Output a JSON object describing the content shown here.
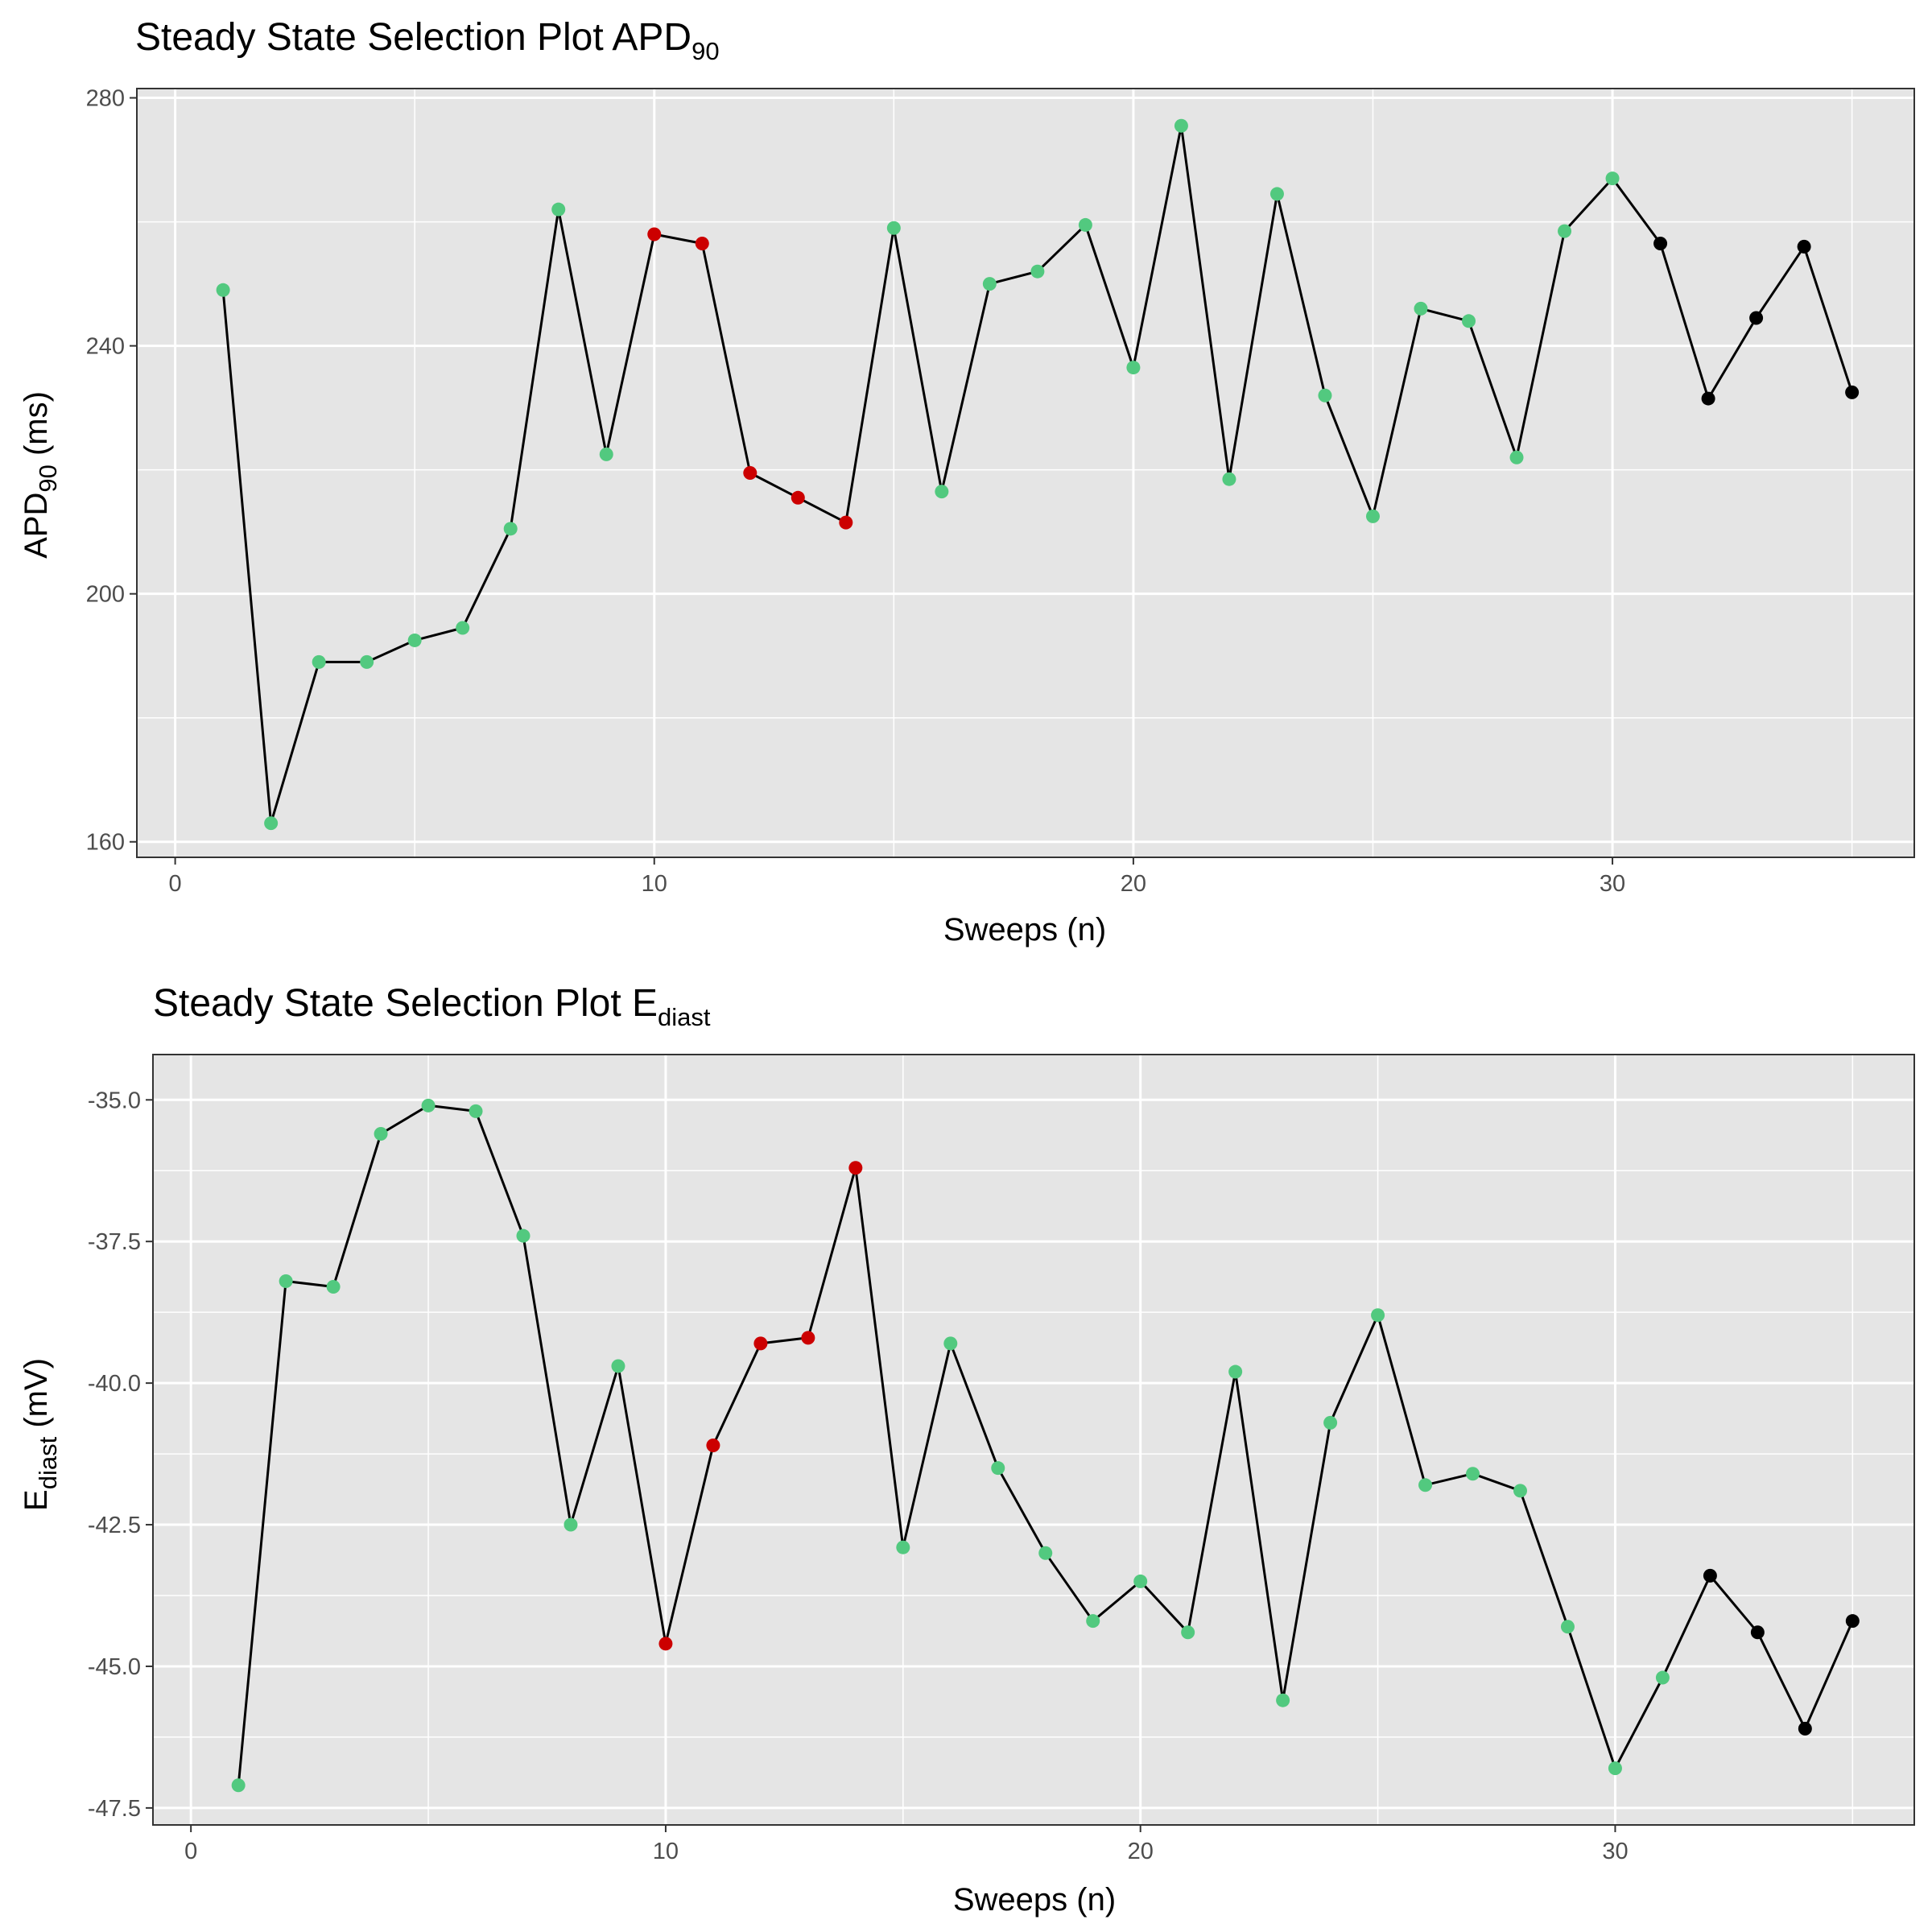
{
  "colors": {
    "panel": "#e5e5e5",
    "grid": "#ffffff",
    "line": "#000000",
    "included": "#52c97f",
    "excluded": "#cc0000",
    "final": "#000000"
  },
  "chart_data": [
    {
      "type": "line",
      "title": "Steady State Selection Plot APD",
      "title_sub": "90",
      "xlabel": "Sweeps (n)",
      "ylabel": "APD",
      "ylabel_sub": "90",
      "ylabel_suffix": " (ms)",
      "xlim": [
        -0.8,
        36.3
      ],
      "ylim": [
        157.5,
        281.5
      ],
      "x_ticks": [
        0,
        10,
        20,
        30
      ],
      "x_tick_labels": [
        "0",
        "10",
        "20",
        "30"
      ],
      "y_ticks": [
        160,
        200,
        240,
        280
      ],
      "y_tick_labels": [
        "160",
        "200",
        "240",
        "280"
      ],
      "grid": true,
      "x": [
        1,
        2,
        3,
        4,
        5,
        6,
        7,
        8,
        9,
        10,
        11,
        12,
        13,
        14,
        15,
        16,
        17,
        18,
        19,
        20,
        21,
        22,
        23,
        24,
        25,
        26,
        27,
        28,
        29,
        30,
        31,
        32,
        33,
        34,
        35
      ],
      "y": [
        249,
        163,
        189,
        189,
        192.5,
        194.5,
        210.5,
        262,
        222.5,
        258,
        256.5,
        219.5,
        215.5,
        211.5,
        259,
        216.5,
        250,
        252,
        259.5,
        236.5,
        275.5,
        218.5,
        264.5,
        232,
        212.5,
        246,
        244,
        222,
        258.5,
        267,
        256.5,
        231.5,
        244.5,
        256,
        232.5
      ],
      "point_status": [
        "included",
        "included",
        "included",
        "included",
        "included",
        "included",
        "included",
        "included",
        "included",
        "excluded",
        "excluded",
        "excluded",
        "excluded",
        "excluded",
        "included",
        "included",
        "included",
        "included",
        "included",
        "included",
        "included",
        "included",
        "included",
        "included",
        "included",
        "included",
        "included",
        "included",
        "included",
        "included",
        "final",
        "final",
        "final",
        "final",
        "final"
      ]
    },
    {
      "type": "line",
      "title": "Steady State Selection Plot E",
      "title_sub": "diast",
      "xlabel": "Sweeps (n)",
      "ylabel": "E",
      "ylabel_sub": "diast",
      "ylabel_suffix": " (mV)",
      "xlim": [
        -0.8,
        36.3
      ],
      "ylim": [
        -47.8,
        -34.2
      ],
      "x_ticks": [
        0,
        10,
        20,
        30
      ],
      "x_tick_labels": [
        "0",
        "10",
        "20",
        "30"
      ],
      "y_ticks": [
        -47.5,
        -45.0,
        -42.5,
        -40.0,
        -37.5,
        -35.0
      ],
      "y_tick_labels": [
        "-47.5",
        "-45.0",
        "-42.5",
        "-40.0",
        "-37.5",
        "-35.0"
      ],
      "grid": true,
      "x": [
        1,
        2,
        3,
        4,
        5,
        6,
        7,
        8,
        9,
        10,
        11,
        12,
        13,
        14,
        15,
        16,
        17,
        18,
        19,
        20,
        21,
        22,
        23,
        24,
        25,
        26,
        27,
        28,
        29,
        30,
        31,
        32,
        33,
        34,
        35
      ],
      "y": [
        -47.1,
        -38.2,
        -38.3,
        -35.6,
        -35.1,
        -35.2,
        -37.4,
        -42.5,
        -39.7,
        -44.6,
        -41.1,
        -39.3,
        -39.2,
        -36.2,
        -42.9,
        -39.3,
        -41.5,
        -43.0,
        -44.2,
        -43.5,
        -44.4,
        -39.8,
        -45.6,
        -40.7,
        -38.8,
        -41.8,
        -41.6,
        -41.9,
        -44.3,
        -46.8,
        -45.2,
        -43.4,
        -44.4,
        -46.1,
        -44.2
      ],
      "point_status": [
        "included",
        "included",
        "included",
        "included",
        "included",
        "included",
        "included",
        "included",
        "included",
        "excluded",
        "excluded",
        "excluded",
        "excluded",
        "excluded",
        "included",
        "included",
        "included",
        "included",
        "included",
        "included",
        "included",
        "included",
        "included",
        "included",
        "included",
        "included",
        "included",
        "included",
        "included",
        "included",
        "included",
        "final",
        "final",
        "final",
        "final"
      ]
    }
  ]
}
